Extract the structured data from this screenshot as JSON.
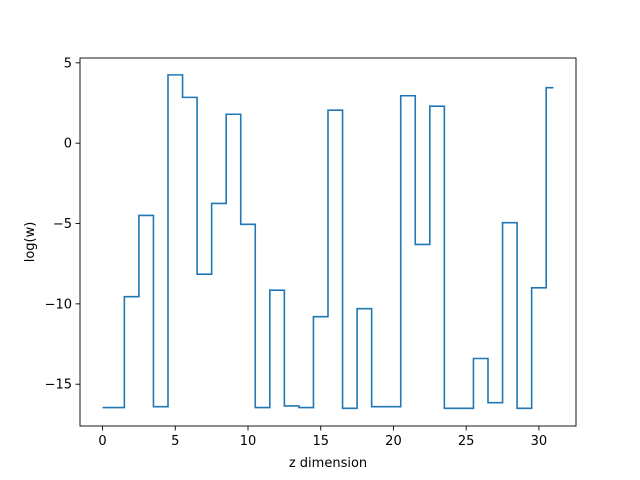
{
  "chart_data": {
    "type": "line",
    "drawstyle": "steps-mid",
    "title": "",
    "xlabel": "z dimension",
    "ylabel": "log(w)",
    "xlim": [
      -1.55,
      32.55
    ],
    "ylim": [
      -17.6,
      5.3
    ],
    "grid": false,
    "legend": "none",
    "colors": {
      "line": "#1f77b4",
      "axis": "#000000",
      "background": "#ffffff"
    },
    "x_ticks": [
      0,
      5,
      10,
      15,
      20,
      25,
      30
    ],
    "x_tick_labels": [
      "0",
      "5",
      "10",
      "15",
      "20",
      "25",
      "30"
    ],
    "y_ticks": [
      5,
      0,
      -5,
      -10,
      -15
    ],
    "y_tick_labels": [
      "5",
      "0",
      "−5",
      "−10",
      "−15"
    ],
    "series": [
      {
        "x": [
          0,
          1,
          2,
          3,
          4,
          5,
          6,
          7,
          8,
          9,
          10,
          11,
          12,
          13,
          14,
          15,
          16,
          17,
          18,
          19,
          20,
          21,
          22,
          23,
          24,
          25,
          26,
          27,
          28,
          29,
          30,
          31
        ],
        "values": [
          -16.45,
          -16.45,
          -9.55,
          -4.5,
          -16.4,
          4.25,
          2.85,
          -8.15,
          -3.75,
          1.8,
          -5.05,
          -16.45,
          -9.15,
          -16.35,
          -16.45,
          -10.8,
          2.05,
          -16.5,
          -10.3,
          -16.4,
          -16.4,
          2.95,
          -6.3,
          2.3,
          -16.5,
          -16.5,
          -13.4,
          -16.15,
          -4.95,
          -16.5,
          -9.0,
          3.45
        ]
      }
    ]
  }
}
